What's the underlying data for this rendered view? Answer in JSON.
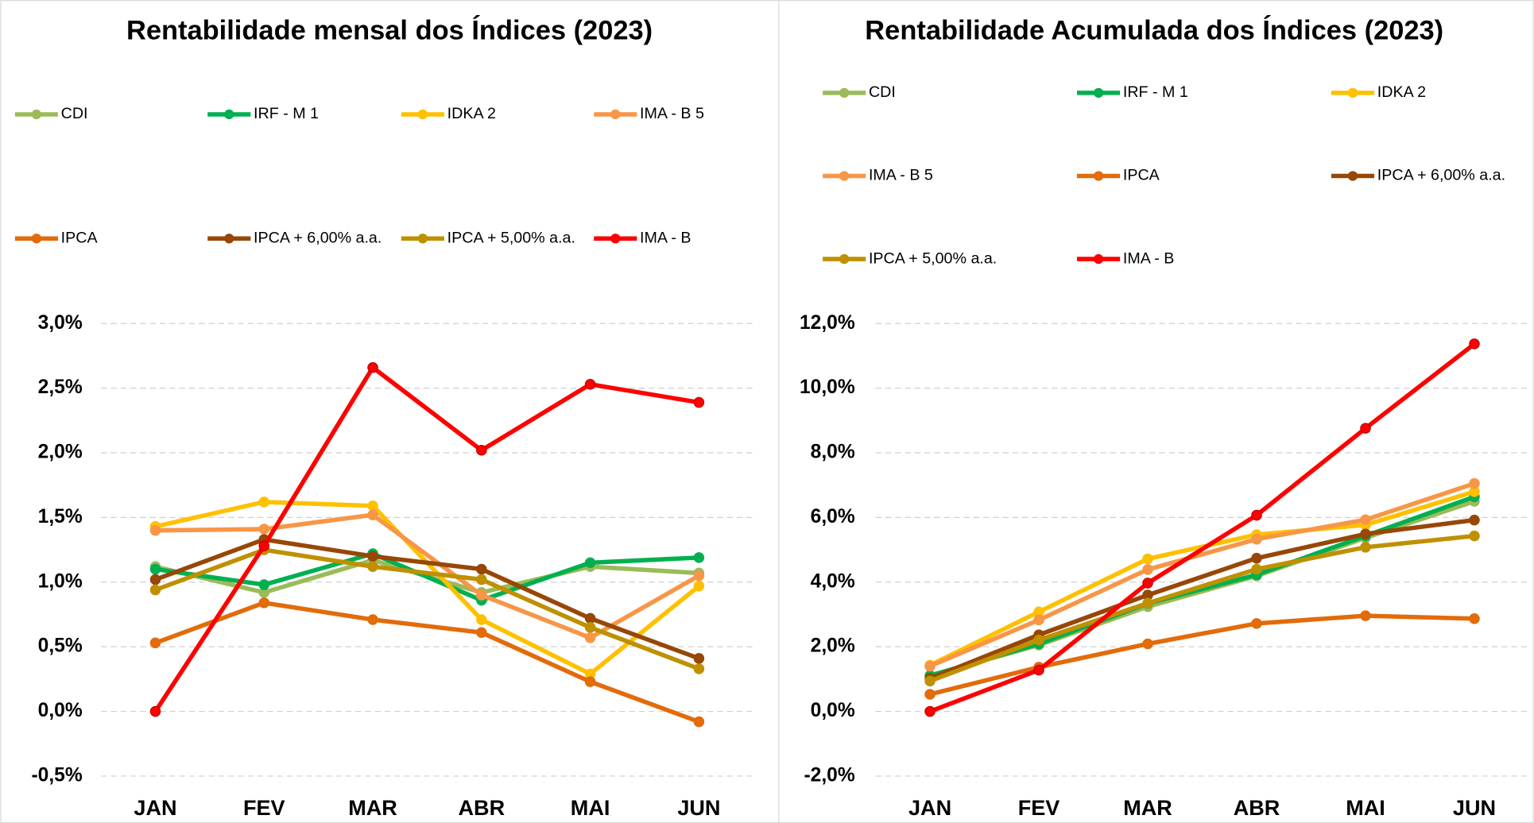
{
  "chart_data": [
    {
      "type": "line",
      "title": "Rentabilidade mensal dos Índices (2023)",
      "categories": [
        "JAN",
        "FEV",
        "MAR",
        "ABR",
        "MAI",
        "JUN"
      ],
      "ylim": [
        -0.5,
        3.0
      ],
      "yticks": [
        {
          "value": -0.5,
          "label": "-0,5%"
        },
        {
          "value": 0,
          "label": "0,0%"
        },
        {
          "value": 0.5,
          "label": "0,5%"
        },
        {
          "value": 1.0,
          "label": "1,0%"
        },
        {
          "value": 1.5,
          "label": "1,5%"
        },
        {
          "value": 2.0,
          "label": "2,0%"
        },
        {
          "value": 2.5,
          "label": "2,5%"
        },
        {
          "value": 3.0,
          "label": "3,0%"
        }
      ],
      "grid": true,
      "series": [
        {
          "name": "CDI",
          "color": "#9bbb59",
          "values": [
            1.12,
            0.92,
            1.17,
            0.92,
            1.12,
            1.07
          ]
        },
        {
          "name": "IRF - M 1",
          "color": "#00b050",
          "values": [
            1.1,
            0.98,
            1.22,
            0.86,
            1.15,
            1.19
          ]
        },
        {
          "name": "IDKA 2",
          "color": "#ffc000",
          "values": [
            1.43,
            1.62,
            1.59,
            0.71,
            0.29,
            0.97
          ]
        },
        {
          "name": "IMA - B 5",
          "color": "#f79646",
          "values": [
            1.4,
            1.41,
            1.52,
            0.9,
            0.57,
            1.05
          ]
        },
        {
          "name": "IPCA",
          "color": "#e26b0a",
          "values": [
            0.53,
            0.84,
            0.71,
            0.61,
            0.23,
            -0.08
          ]
        },
        {
          "name": "IPCA + 6,00% a.a.",
          "color": "#974706",
          "values": [
            1.02,
            1.33,
            1.2,
            1.1,
            0.72,
            0.41
          ]
        },
        {
          "name": "IPCA + 5,00% a.a.",
          "color": "#bf9000",
          "values": [
            0.94,
            1.25,
            1.12,
            1.02,
            0.65,
            0.33
          ]
        },
        {
          "name": "IMA - B",
          "color": "#ff0000",
          "values": [
            0.0,
            1.28,
            2.66,
            2.02,
            2.53,
            2.39
          ]
        }
      ]
    },
    {
      "type": "line",
      "title": "Rentabilidade Acumulada dos Índices (2023)",
      "categories": [
        "JAN",
        "FEV",
        "MAR",
        "ABR",
        "MAI",
        "JUN"
      ],
      "ylim": [
        -2,
        12
      ],
      "yticks": [
        {
          "value": -2,
          "label": "-2,0%"
        },
        {
          "value": 0,
          "label": "0,0%"
        },
        {
          "value": 2,
          "label": "2,0%"
        },
        {
          "value": 4,
          "label": "4,0%"
        },
        {
          "value": 6,
          "label": "6,0%"
        },
        {
          "value": 8,
          "label": "8,0%"
        },
        {
          "value": 10,
          "label": "10,0%"
        },
        {
          "value": 12,
          "label": "12,0%"
        }
      ],
      "grid": true,
      "series": [
        {
          "name": "CDI",
          "color": "#9bbb59",
          "values": [
            1.12,
            2.05,
            3.24,
            4.19,
            5.37,
            6.5
          ]
        },
        {
          "name": "IRF - M 1",
          "color": "#00b050",
          "values": [
            1.1,
            2.09,
            3.34,
            4.23,
            5.43,
            6.64
          ]
        },
        {
          "name": "IDKA 2",
          "color": "#ffc000",
          "values": [
            1.43,
            3.08,
            4.72,
            5.47,
            5.77,
            6.8
          ]
        },
        {
          "name": "IMA - B 5",
          "color": "#f79646",
          "values": [
            1.4,
            2.83,
            4.39,
            5.33,
            5.93,
            7.05
          ]
        },
        {
          "name": "IPCA",
          "color": "#e26b0a",
          "values": [
            0.53,
            1.37,
            2.09,
            2.72,
            2.96,
            2.87
          ]
        },
        {
          "name": "IPCA + 6,00% a.a.",
          "color": "#974706",
          "values": [
            1.02,
            2.37,
            3.6,
            4.74,
            5.49,
            5.92
          ]
        },
        {
          "name": "IPCA + 5,00% a.a.",
          "color": "#bf9000",
          "values": [
            0.94,
            2.21,
            3.35,
            4.4,
            5.08,
            5.43
          ]
        },
        {
          "name": "IMA - B",
          "color": "#ff0000",
          "values": [
            0.0,
            1.28,
            3.97,
            6.07,
            8.76,
            11.37
          ]
        }
      ]
    }
  ]
}
